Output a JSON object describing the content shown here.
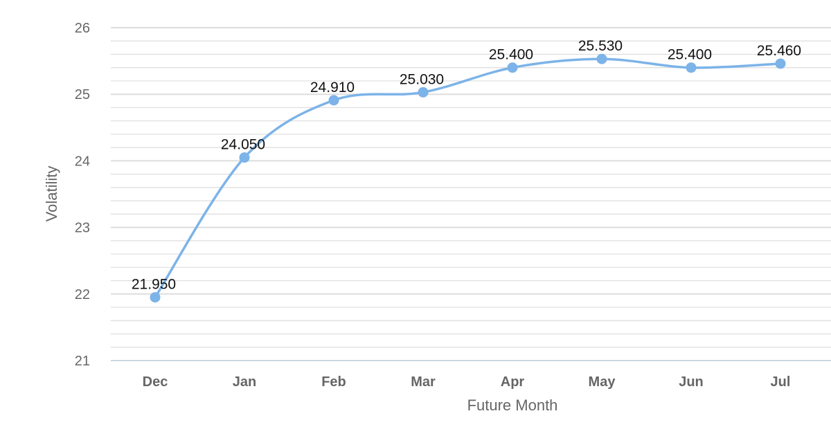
{
  "chart_data": {
    "type": "line",
    "smooth": true,
    "title": "",
    "xlabel": "Future Month",
    "ylabel": "Volatility",
    "categories": [
      "Dec",
      "Jan",
      "Feb",
      "Mar",
      "Apr",
      "May",
      "Jun",
      "Jul"
    ],
    "series": [
      {
        "values": [
          21.95,
          24.05,
          24.91,
          25.03,
          25.4,
          25.53,
          25.4,
          25.46
        ],
        "labels": [
          "21.950",
          "24.050",
          "24.910",
          "25.030",
          "25.400",
          "25.530",
          "25.400",
          "25.460"
        ]
      }
    ],
    "ylim": [
      21,
      26
    ],
    "yticks": [
      21,
      22,
      23,
      24,
      25,
      26
    ],
    "minor_gridlines_per_unit": 5,
    "grid": true,
    "legend": "none",
    "colors": {
      "line": "#7cb3e8",
      "marker": "#7cb3e8",
      "grid": "#dddddd",
      "axis": "#c8d6e0",
      "tick_text": "#666666",
      "label_text": "#111111"
    }
  }
}
